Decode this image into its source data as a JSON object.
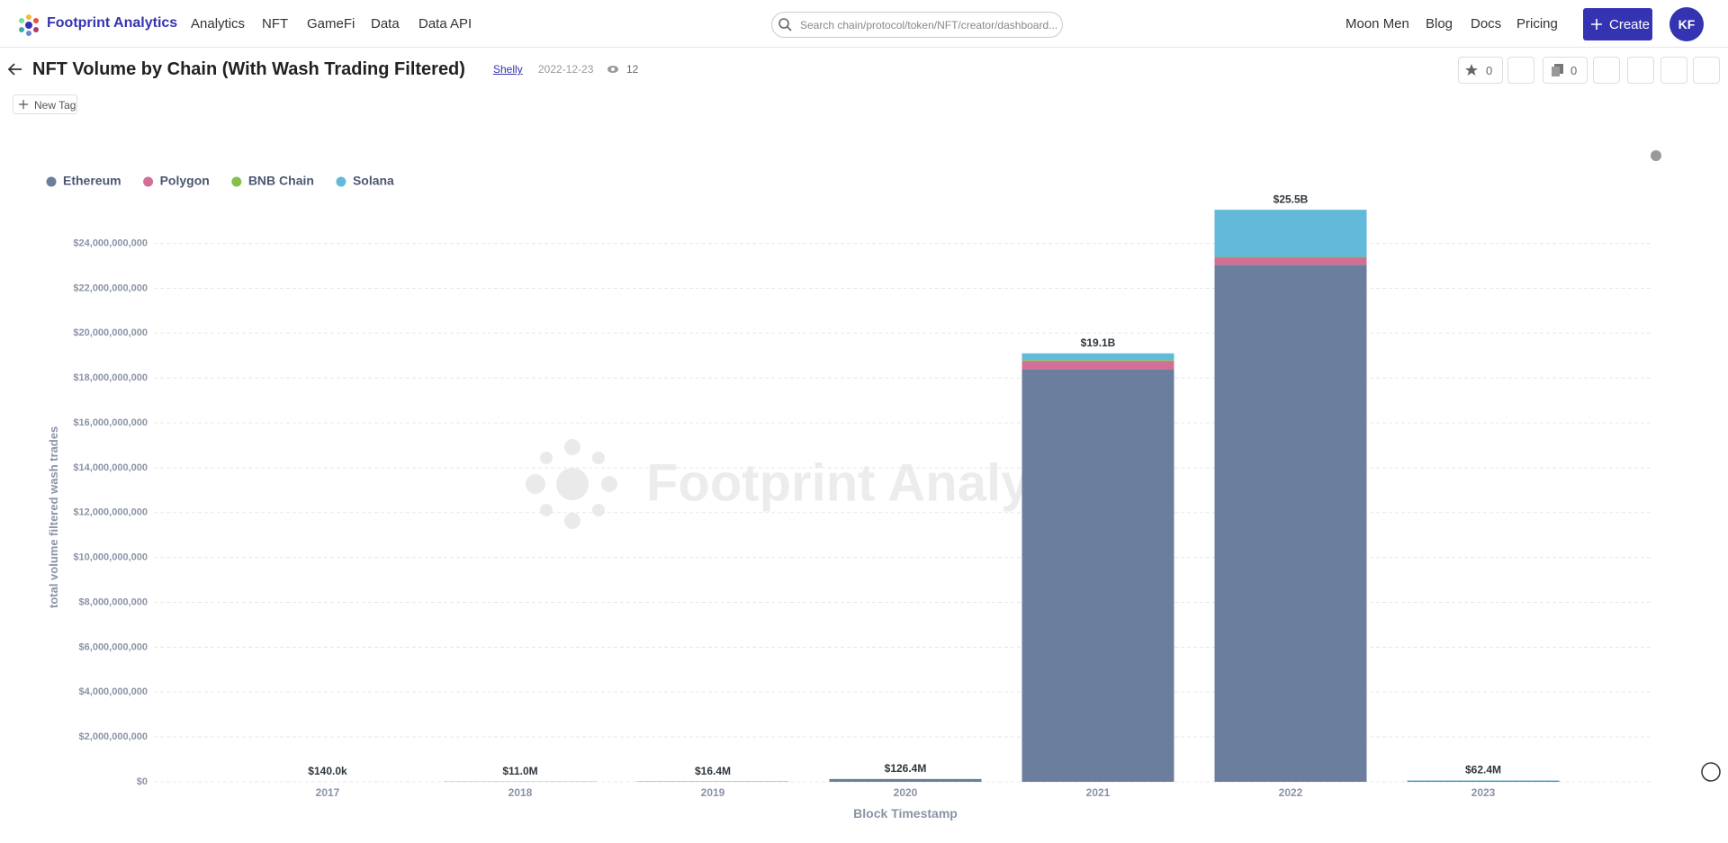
{
  "header": {
    "brand": "Footprint Analytics",
    "nav": [
      "Analytics",
      "NFT",
      "GameFi",
      "Data",
      "Data API"
    ],
    "search_placeholder": "Search chain/protocol/token/NFT/creator/dashboard...",
    "links": [
      "Moon Men",
      "Blog",
      "Docs",
      "Pricing"
    ],
    "create": "Create",
    "avatar": "KF"
  },
  "page": {
    "title": "NFT Volume by Chain (With Wash Trading Filtered)",
    "author": "Shelly",
    "date": "2022-12-23",
    "views": 12,
    "stars": 0,
    "copies": 0,
    "new_tag": "New Tag"
  },
  "watermark": "Footprint Analytics",
  "chart_data": {
    "type": "bar",
    "stacked": true,
    "x_label": "Block Timestamp",
    "y_label": "total volume filtered wash trades",
    "categories": [
      "2017",
      "2018",
      "2019",
      "2020",
      "2021",
      "2022",
      "2023"
    ],
    "series": [
      {
        "name": "Ethereum",
        "color": "#6c7e9e",
        "values": [
          140000,
          11000000,
          16400000,
          125000000,
          18400000000,
          23050000000,
          40000000
        ]
      },
      {
        "name": "Polygon",
        "color": "#d36f97",
        "values": [
          0,
          0,
          0,
          0,
          350000000,
          330000000,
          2000000
        ]
      },
      {
        "name": "BNB Chain",
        "color": "#84bf4b",
        "values": [
          0,
          0,
          0,
          0,
          50000000,
          20000000,
          400000
        ]
      },
      {
        "name": "Solana",
        "color": "#62b9da",
        "values": [
          0,
          0,
          0,
          1400000,
          300000000,
          2100000000,
          20000000
        ]
      }
    ],
    "totals": [
      140000,
      11000000,
      16400000,
      126400000,
      19100000000,
      25500000000,
      62400000
    ],
    "total_labels": [
      "$140.0k",
      "$11.0M",
      "$16.4M",
      "$126.4M",
      "$19.1B",
      "$25.5B",
      "$62.4M"
    ],
    "ylim": [
      0,
      26000000000
    ],
    "yticks": [
      {
        "value": 0,
        "label": "$0"
      },
      {
        "value": 2000000000,
        "label": "$2,000,000,000"
      },
      {
        "value": 4000000000,
        "label": "$4,000,000,000"
      },
      {
        "value": 6000000000,
        "label": "$6,000,000,000"
      },
      {
        "value": 8000000000,
        "label": "$8,000,000,000"
      },
      {
        "value": 10000000000,
        "label": "$10,000,000,000"
      },
      {
        "value": 12000000000,
        "label": "$12,000,000,000"
      },
      {
        "value": 14000000000,
        "label": "$14,000,000,000"
      },
      {
        "value": 16000000000,
        "label": "$16,000,000,000"
      },
      {
        "value": 18000000000,
        "label": "$18,000,000,000"
      },
      {
        "value": 20000000000,
        "label": "$20,000,000,000"
      },
      {
        "value": 22000000000,
        "label": "$22,000,000,000"
      },
      {
        "value": 24000000000,
        "label": "$24,000,000,000"
      }
    ],
    "grid": true,
    "legend": "top-left"
  }
}
